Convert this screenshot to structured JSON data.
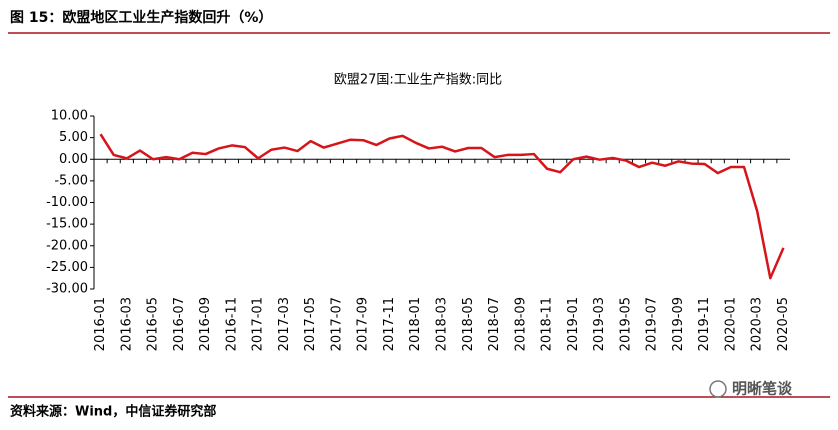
{
  "header": "图 15：欧盟地区工业生产指数回升（%）",
  "source": "资料来源：Wind，中信证券研究部",
  "watermark": "明晰笔谈",
  "chart_data": {
    "type": "line",
    "title": "欧盟27国:工业生产指数:同比",
    "categories": [
      "2016-01",
      null,
      "2016-03",
      null,
      "2016-05",
      null,
      "2016-07",
      null,
      "2016-09",
      null,
      "2016-11",
      null,
      "2017-01",
      null,
      "2017-03",
      null,
      "2017-05",
      null,
      "2017-07",
      null,
      "2017-09",
      null,
      "2017-11",
      null,
      "2018-01",
      null,
      "2018-03",
      null,
      "2018-05",
      null,
      "2018-07",
      null,
      "2018-09",
      null,
      "2018-11",
      null,
      "2019-01",
      null,
      "2019-03",
      null,
      "2019-05",
      null,
      "2019-07",
      null,
      "2019-09",
      null,
      "2019-11",
      null,
      "2020-01",
      null,
      "2020-03",
      null,
      "2020-05"
    ],
    "series": [
      {
        "name": "欧盟27国:工业生产指数:同比",
        "color": "#d7141a",
        "values": [
          5.8,
          1.0,
          0.2,
          2.0,
          0.0,
          0.5,
          0.0,
          1.5,
          1.2,
          2.5,
          3.2,
          2.8,
          0.2,
          2.2,
          2.7,
          1.9,
          4.2,
          2.7,
          3.6,
          4.5,
          4.4,
          3.3,
          4.8,
          5.4,
          3.8,
          2.5,
          2.9,
          1.8,
          2.6,
          2.6,
          0.5,
          1.0,
          1.0,
          1.2,
          -2.2,
          -3.0,
          0.0,
          0.6,
          -0.1,
          0.3,
          -0.3,
          -1.8,
          -0.8,
          -1.5,
          -0.5,
          -1.0,
          -1.1,
          -3.2,
          -1.8,
          -1.8,
          -12.0,
          -27.5,
          -20.5
        ]
      }
    ],
    "ylim": [
      -30,
      10
    ],
    "yticks": [
      {
        "value": 10,
        "label": "10.00"
      },
      {
        "value": 5,
        "label": "5.00"
      },
      {
        "value": 0,
        "label": "0.00"
      },
      {
        "value": -5,
        "label": "-5.00"
      },
      {
        "value": -10,
        "label": "-10.00"
      },
      {
        "value": -15,
        "label": "-15.00"
      },
      {
        "value": -20,
        "label": "-20.00"
      },
      {
        "value": -25,
        "label": "-25.00"
      },
      {
        "value": -30,
        "label": "-30.00"
      }
    ],
    "grid": false
  }
}
